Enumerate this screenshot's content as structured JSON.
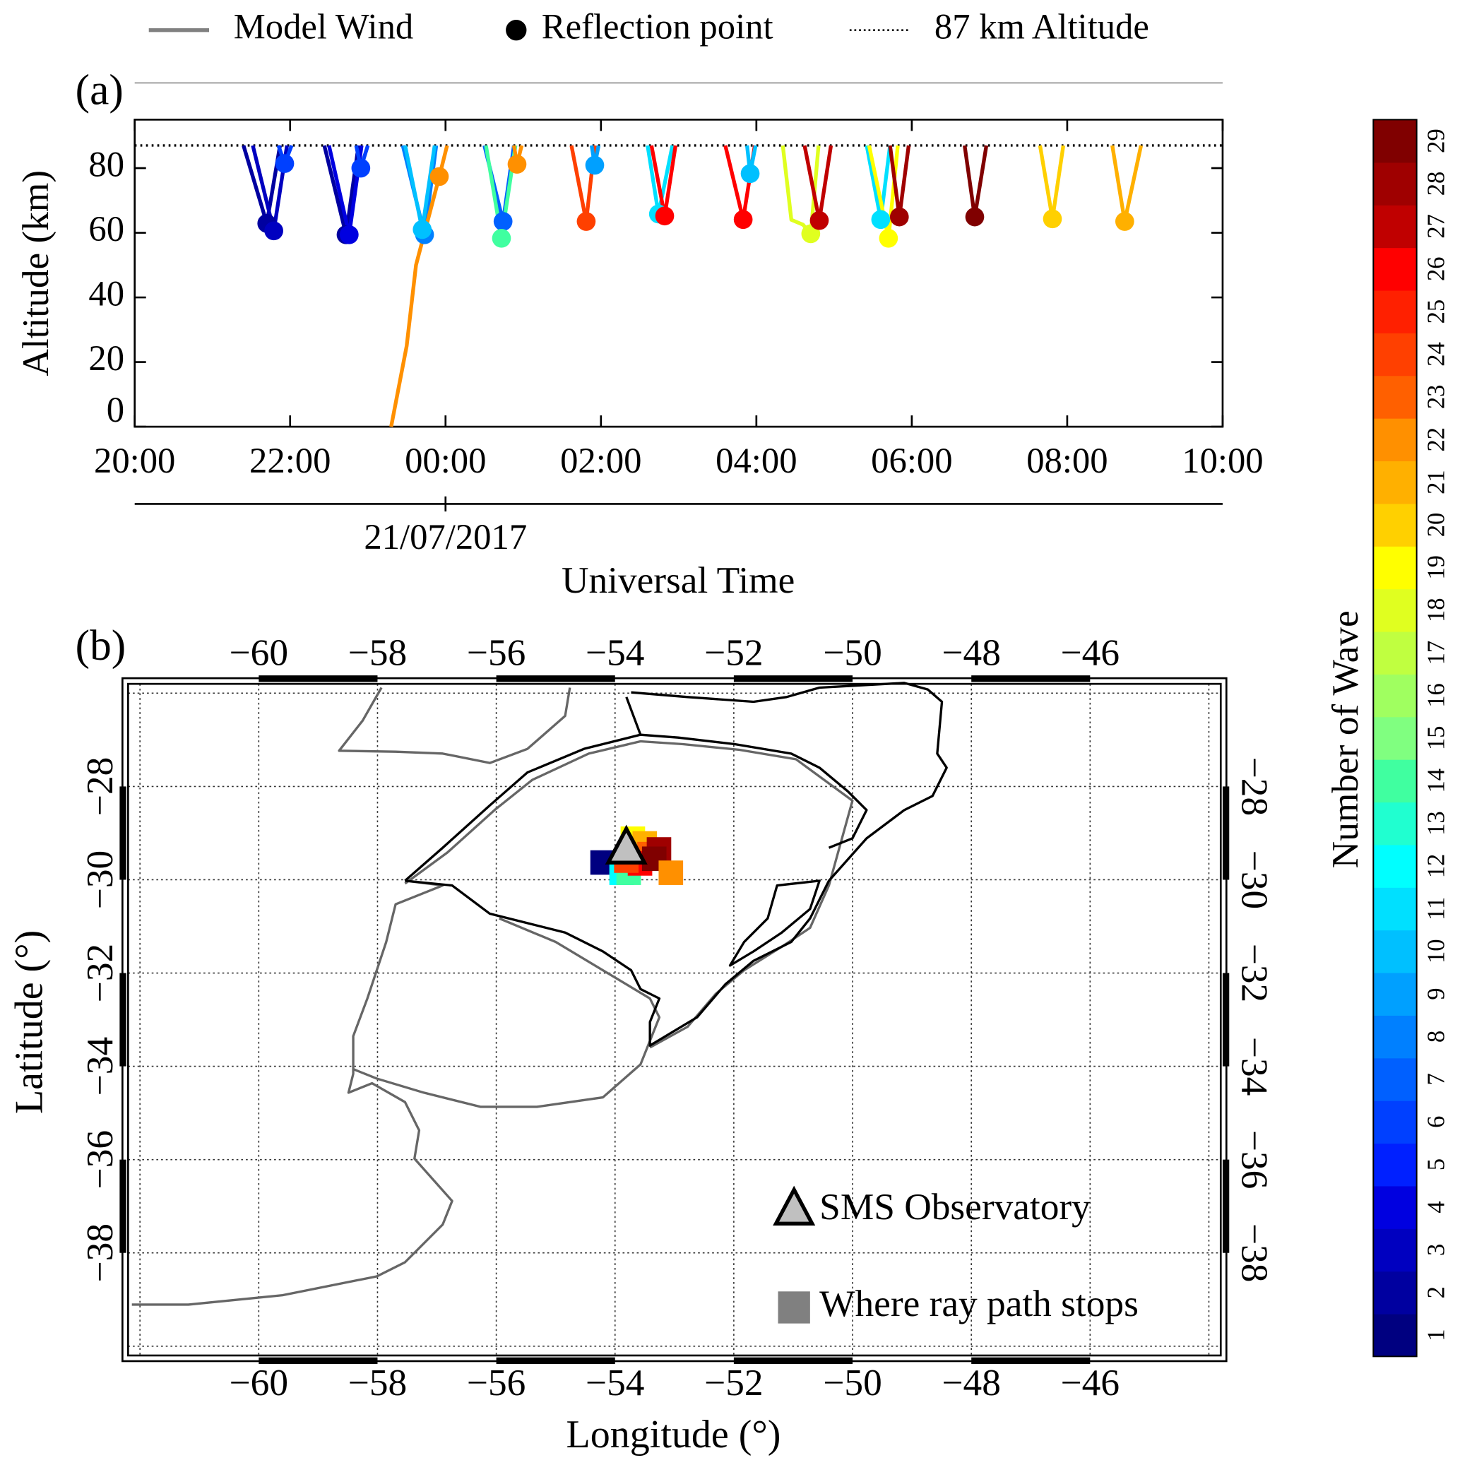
{
  "chart_data": [
    {
      "type": "line",
      "panel_label": "(a)",
      "legend": [
        "Model Wind",
        "Reflection point",
        "87 km Altitude"
      ],
      "ylabel": "Altitude (km)",
      "xlabel": "Universal Time",
      "date_label": "21/07/2017",
      "hline": 87,
      "xlim": [
        20,
        34
      ],
      "xticks": [
        {
          "value": 20,
          "label": "20:00"
        },
        {
          "value": 22,
          "label": "22:00"
        },
        {
          "value": 24,
          "label": "00:00"
        },
        {
          "value": 26,
          "label": "02:00"
        },
        {
          "value": 28,
          "label": "04:00"
        },
        {
          "value": 30,
          "label": "06:00"
        },
        {
          "value": 32,
          "label": "08:00"
        },
        {
          "value": 34,
          "label": "10:00"
        }
      ],
      "ylim": [
        0,
        95
      ],
      "yticks": [
        0,
        20,
        40,
        60,
        80
      ],
      "series": [
        {
          "color": "#0000a0",
          "x": [
            21.4,
            21.7,
            21.87
          ],
          "values": [
            87,
            62.9,
            87
          ]
        },
        {
          "color": "#0000c0",
          "x": [
            21.52,
            21.79,
            21.96
          ],
          "values": [
            87,
            60.6,
            87
          ]
        },
        {
          "color": "#0040ff",
          "x": [
            21.85,
            21.93,
            22.02
          ],
          "values": [
            87,
            81.4,
            87
          ]
        },
        {
          "color": "#0000a0",
          "x": [
            22.44,
            22.72,
            22.88
          ],
          "values": [
            87,
            59.4,
            87
          ]
        },
        {
          "color": "#0000e0",
          "x": [
            22.5,
            22.76,
            22.92
          ],
          "values": [
            87,
            59.4,
            87
          ]
        },
        {
          "color": "#0040ff",
          "x": [
            22.85,
            22.91,
            23.0
          ],
          "values": [
            87,
            80.0,
            87
          ]
        },
        {
          "color": "#0080ff",
          "x": [
            23.45,
            23.73,
            23.88
          ],
          "values": [
            87,
            59.4,
            87
          ]
        },
        {
          "color": "#00c0ff",
          "x": [
            23.48,
            23.7,
            23.86
          ],
          "values": [
            87,
            61.0,
            87
          ]
        },
        {
          "color": "#ff9000",
          "x": [
            23.3,
            23.38,
            23.5,
            23.62,
            23.92,
            24.02
          ],
          "values": [
            0,
            10,
            25,
            50,
            77.4,
            87
          ]
        },
        {
          "color": "#0060ff",
          "x": [
            24.5,
            24.74,
            24.88
          ],
          "values": [
            87,
            63.5,
            87
          ]
        },
        {
          "color": "#40ffa0",
          "x": [
            24.52,
            24.72,
            24.9
          ],
          "values": [
            87,
            58.3,
            87
          ]
        },
        {
          "color": "#ff9000",
          "x": [
            24.88,
            24.92,
            24.98
          ],
          "values": [
            87,
            81.2,
            87
          ]
        },
        {
          "color": "#ff4000",
          "x": [
            25.62,
            25.81,
            25.92
          ],
          "values": [
            87,
            63.5,
            87
          ]
        },
        {
          "color": "#00a0ff",
          "x": [
            25.88,
            25.92,
            25.97
          ],
          "values": [
            87,
            80.9,
            87
          ]
        },
        {
          "color": "#00e0ff",
          "x": [
            26.6,
            26.74,
            26.92
          ],
          "values": [
            87,
            65.8,
            87
          ]
        },
        {
          "color": "#ff0000",
          "x": [
            26.65,
            26.82,
            26.96
          ],
          "values": [
            87,
            65.2,
            87
          ]
        },
        {
          "color": "#ff0000",
          "x": [
            27.6,
            27.83,
            27.98
          ],
          "values": [
            87,
            64.1,
            87
          ]
        },
        {
          "color": "#00c0ff",
          "x": [
            27.88,
            27.92,
            27.99
          ],
          "values": [
            87,
            78.3,
            87
          ]
        },
        {
          "color": "#e0ff20",
          "x": [
            28.34,
            28.45,
            28.6,
            28.7,
            28.8
          ],
          "values": [
            87,
            64.0,
            62.5,
            59.7,
            87
          ]
        },
        {
          "color": "#c00000",
          "x": [
            28.62,
            28.81,
            28.96
          ],
          "values": [
            87,
            63.8,
            87
          ]
        },
        {
          "color": "#00e0ff",
          "x": [
            29.42,
            29.6,
            29.72
          ],
          "values": [
            87,
            64.1,
            87
          ]
        },
        {
          "color": "#ffff00",
          "x": [
            29.45,
            29.7,
            29.82
          ],
          "values": [
            87,
            58.3,
            87
          ]
        },
        {
          "color": "#9f0000",
          "x": [
            29.72,
            29.84,
            29.96
          ],
          "values": [
            87,
            64.9,
            87
          ]
        },
        {
          "color": "#800000",
          "x": [
            30.68,
            30.81,
            30.96
          ],
          "values": [
            87,
            64.9,
            87
          ]
        },
        {
          "color": "#ffd000",
          "x": [
            31.65,
            31.81,
            31.95
          ],
          "values": [
            87,
            64.3,
            87
          ]
        },
        {
          "color": "#ffb000",
          "x": [
            32.58,
            32.74,
            32.95
          ],
          "values": [
            87,
            63.5,
            87
          ]
        }
      ],
      "reflection_points": {
        "x": [
          21.7,
          21.79,
          21.93,
          22.72,
          22.76,
          22.91,
          23.73,
          23.7,
          23.92,
          24.74,
          24.72,
          24.92,
          25.81,
          25.92,
          26.74,
          26.82,
          27.83,
          27.92,
          28.7,
          28.81,
          29.6,
          29.7,
          29.84,
          30.81,
          31.81,
          32.74
        ],
        "values": [
          62.9,
          60.6,
          81.4,
          59.4,
          59.4,
          80.0,
          59.4,
          61.0,
          77.4,
          63.5,
          58.3,
          81.2,
          63.5,
          80.9,
          65.8,
          65.2,
          64.1,
          78.3,
          59.7,
          63.8,
          64.1,
          58.3,
          64.9,
          64.9,
          64.3,
          63.5
        ],
        "colors": [
          "#0000a0",
          "#0000c0",
          "#0040ff",
          "#0000a0",
          "#0000e0",
          "#0040ff",
          "#0080ff",
          "#00c0ff",
          "#ff9000",
          "#0060ff",
          "#40ffa0",
          "#ff9000",
          "#ff4000",
          "#00a0ff",
          "#00e0ff",
          "#ff0000",
          "#ff0000",
          "#00c0ff",
          "#e0ff20",
          "#c00000",
          "#00e0ff",
          "#ffff00",
          "#9f0000",
          "#800000",
          "#ffd000",
          "#ffb000"
        ]
      }
    },
    {
      "type": "scatter",
      "panel_label": "(b)",
      "xlabel": "Longitude (°)",
      "ylabel": "Latitude (°)",
      "xlim": [
        -62.2,
        -43.8
      ],
      "ylim": [
        -40.2,
        -25.8
      ],
      "xticks": [
        {
          "value": -60,
          "label": "−60"
        },
        {
          "value": -58,
          "label": "−58"
        },
        {
          "value": -56,
          "label": "−56"
        },
        {
          "value": -54,
          "label": "−54"
        },
        {
          "value": -52,
          "label": "−52"
        },
        {
          "value": -50,
          "label": "−50"
        },
        {
          "value": -48,
          "label": "−48"
        },
        {
          "value": -46,
          "label": "−46"
        }
      ],
      "yticks": [
        {
          "value": -28,
          "label": "−28"
        },
        {
          "value": -30,
          "label": "−30"
        },
        {
          "value": -32,
          "label": "−32"
        },
        {
          "value": -34,
          "label": "−34"
        },
        {
          "value": -36,
          "label": "−36"
        },
        {
          "value": -38,
          "label": "−38"
        }
      ],
      "grid": true,
      "xgrid": [
        -62,
        -60,
        -58,
        -56,
        -54,
        -52,
        -50,
        -48,
        -46,
        -44
      ],
      "ygrid": [
        -26,
        -28,
        -30,
        -32,
        -34,
        -36,
        -38,
        -40
      ],
      "series": [
        {
          "name": "SMS Observatory",
          "marker": "triangle",
          "color": "#c0c0c0",
          "x": [
            -53.81
          ],
          "values": [
            -29.35
          ]
        },
        {
          "name": "Where ray path stops",
          "marker": "square",
          "color": "#808080",
          "x": [
            -54.21,
            -53.89,
            -53.77,
            -53.7,
            -53.5,
            -53.42,
            -53.58,
            -53.26,
            -53.34,
            -53.06,
            -53.81
          ],
          "values": [
            -29.63,
            -29.85,
            -29.85,
            -29.12,
            -29.22,
            -29.45,
            -29.65,
            -29.35,
            -29.55,
            -29.85,
            -29.59
          ],
          "colors": [
            "#000080",
            "#00ffff",
            "#40ffa0",
            "#ffff00",
            "#ffb000",
            "#ff6000",
            "#ff0000",
            "#9f0000",
            "#800000",
            "#ff9000",
            "#ff4000"
          ]
        }
      ]
    }
  ],
  "colorbar": {
    "label": "Number of Wave",
    "ticks": [
      1,
      2,
      3,
      4,
      5,
      6,
      7,
      8,
      9,
      10,
      11,
      12,
      13,
      14,
      15,
      16,
      17,
      18,
      19,
      20,
      21,
      22,
      23,
      24,
      25,
      26,
      27,
      28,
      29
    ],
    "colors": [
      "#000080",
      "#0000a0",
      "#0000c0",
      "#0000e0",
      "#0020ff",
      "#0040ff",
      "#0060ff",
      "#0080ff",
      "#00a0ff",
      "#00c0ff",
      "#00e0ff",
      "#00ffff",
      "#20ffd0",
      "#40ffa0",
      "#80ff80",
      "#a0ff60",
      "#c0ff40",
      "#e0ff20",
      "#ffff00",
      "#ffd000",
      "#ffb000",
      "#ff9000",
      "#ff6000",
      "#ff4000",
      "#ff2000",
      "#ff0000",
      "#c00000",
      "#9f0000",
      "#800000"
    ]
  }
}
